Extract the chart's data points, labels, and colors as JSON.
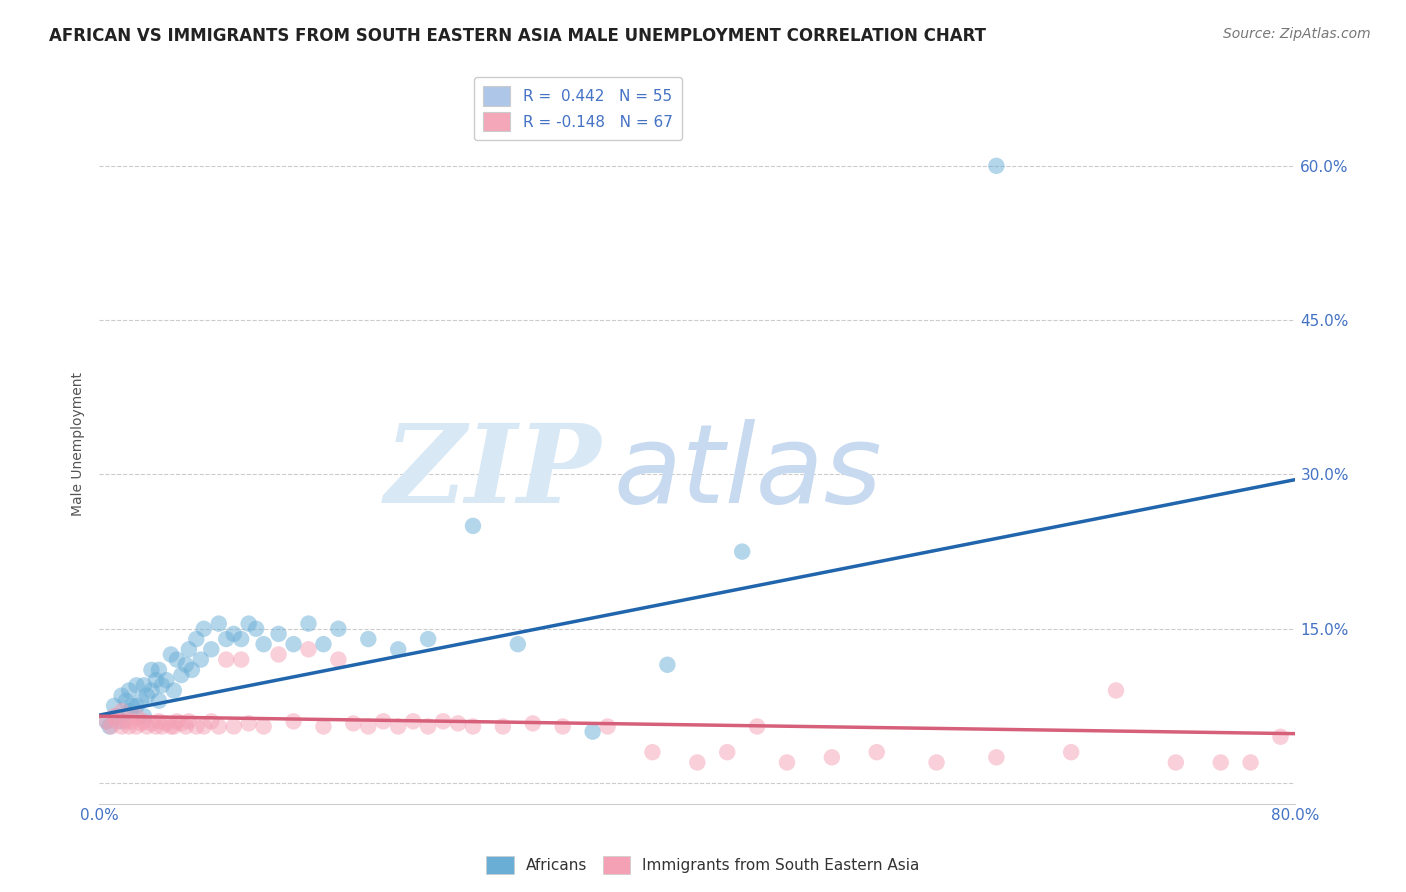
{
  "title": "AFRICAN VS IMMIGRANTS FROM SOUTH EASTERN ASIA MALE UNEMPLOYMENT CORRELATION CHART",
  "source": "Source: ZipAtlas.com",
  "ylabel": "Male Unemployment",
  "xlim": [
    0.0,
    0.8
  ],
  "ylim": [
    -0.02,
    0.68
  ],
  "yticks": [
    0.0,
    0.15,
    0.3,
    0.45,
    0.6
  ],
  "ytick_labels": [
    "",
    "15.0%",
    "30.0%",
    "45.0%",
    "60.0%"
  ],
  "xticks": [
    0.0,
    0.2,
    0.4,
    0.6,
    0.8
  ],
  "xtick_labels": [
    "0.0%",
    "",
    "",
    "",
    "80.0%"
  ],
  "legend_entries": [
    {
      "label": "R =  0.442   N = 55",
      "color": "#aec6e8"
    },
    {
      "label": "R = -0.148   N = 67",
      "color": "#f4a7b9"
    }
  ],
  "africans_color": "#6aaed6",
  "sea_color": "#f4a0b5",
  "africans_line_color": "#2166ac",
  "sea_line_color": "#d6607a",
  "background_color": "#ffffff",
  "watermark_zip": "ZIP",
  "watermark_atlas": "atlas",
  "watermark_color": "#d8e8f5",
  "africans_scatter_x": [
    0.005,
    0.007,
    0.01,
    0.012,
    0.015,
    0.015,
    0.018,
    0.02,
    0.02,
    0.022,
    0.025,
    0.025,
    0.028,
    0.03,
    0.03,
    0.032,
    0.035,
    0.035,
    0.038,
    0.04,
    0.04,
    0.042,
    0.045,
    0.048,
    0.05,
    0.052,
    0.055,
    0.058,
    0.06,
    0.062,
    0.065,
    0.068,
    0.07,
    0.075,
    0.08,
    0.085,
    0.09,
    0.095,
    0.1,
    0.105,
    0.11,
    0.12,
    0.13,
    0.14,
    0.15,
    0.16,
    0.18,
    0.2,
    0.22,
    0.25,
    0.28,
    0.33,
    0.38,
    0.43,
    0.6
  ],
  "africans_scatter_y": [
    0.06,
    0.055,
    0.075,
    0.065,
    0.06,
    0.085,
    0.08,
    0.07,
    0.09,
    0.075,
    0.075,
    0.095,
    0.08,
    0.065,
    0.095,
    0.085,
    0.09,
    0.11,
    0.1,
    0.08,
    0.11,
    0.095,
    0.1,
    0.125,
    0.09,
    0.12,
    0.105,
    0.115,
    0.13,
    0.11,
    0.14,
    0.12,
    0.15,
    0.13,
    0.155,
    0.14,
    0.145,
    0.14,
    0.155,
    0.15,
    0.135,
    0.145,
    0.135,
    0.155,
    0.135,
    0.15,
    0.14,
    0.13,
    0.14,
    0.25,
    0.135,
    0.05,
    0.115,
    0.225,
    0.6
  ],
  "sea_scatter_x": [
    0.005,
    0.008,
    0.01,
    0.012,
    0.015,
    0.015,
    0.018,
    0.02,
    0.022,
    0.025,
    0.025,
    0.028,
    0.03,
    0.032,
    0.035,
    0.038,
    0.04,
    0.042,
    0.045,
    0.048,
    0.05,
    0.052,
    0.055,
    0.058,
    0.06,
    0.065,
    0.07,
    0.075,
    0.08,
    0.085,
    0.09,
    0.095,
    0.1,
    0.11,
    0.12,
    0.13,
    0.14,
    0.15,
    0.16,
    0.17,
    0.18,
    0.19,
    0.2,
    0.21,
    0.22,
    0.23,
    0.24,
    0.25,
    0.27,
    0.29,
    0.31,
    0.34,
    0.37,
    0.4,
    0.42,
    0.44,
    0.46,
    0.49,
    0.52,
    0.56,
    0.6,
    0.65,
    0.68,
    0.72,
    0.75,
    0.77,
    0.79
  ],
  "sea_scatter_y": [
    0.06,
    0.055,
    0.065,
    0.06,
    0.055,
    0.07,
    0.06,
    0.055,
    0.06,
    0.055,
    0.065,
    0.058,
    0.06,
    0.055,
    0.058,
    0.055,
    0.06,
    0.055,
    0.058,
    0.055,
    0.055,
    0.06,
    0.058,
    0.055,
    0.06,
    0.055,
    0.055,
    0.06,
    0.055,
    0.12,
    0.055,
    0.12,
    0.058,
    0.055,
    0.125,
    0.06,
    0.13,
    0.055,
    0.12,
    0.058,
    0.055,
    0.06,
    0.055,
    0.06,
    0.055,
    0.06,
    0.058,
    0.055,
    0.055,
    0.058,
    0.055,
    0.055,
    0.03,
    0.02,
    0.03,
    0.055,
    0.02,
    0.025,
    0.03,
    0.02,
    0.025,
    0.03,
    0.09,
    0.02,
    0.02,
    0.02,
    0.045
  ],
  "africans_line": {
    "x0": 0.0,
    "y0": 0.066,
    "x1": 0.8,
    "y1": 0.295
  },
  "sea_line": {
    "x0": 0.0,
    "y0": 0.065,
    "x1": 0.8,
    "y1": 0.048
  },
  "title_fontsize": 12,
  "source_fontsize": 10,
  "axis_label_fontsize": 10,
  "tick_fontsize": 11,
  "legend_fontsize": 11
}
